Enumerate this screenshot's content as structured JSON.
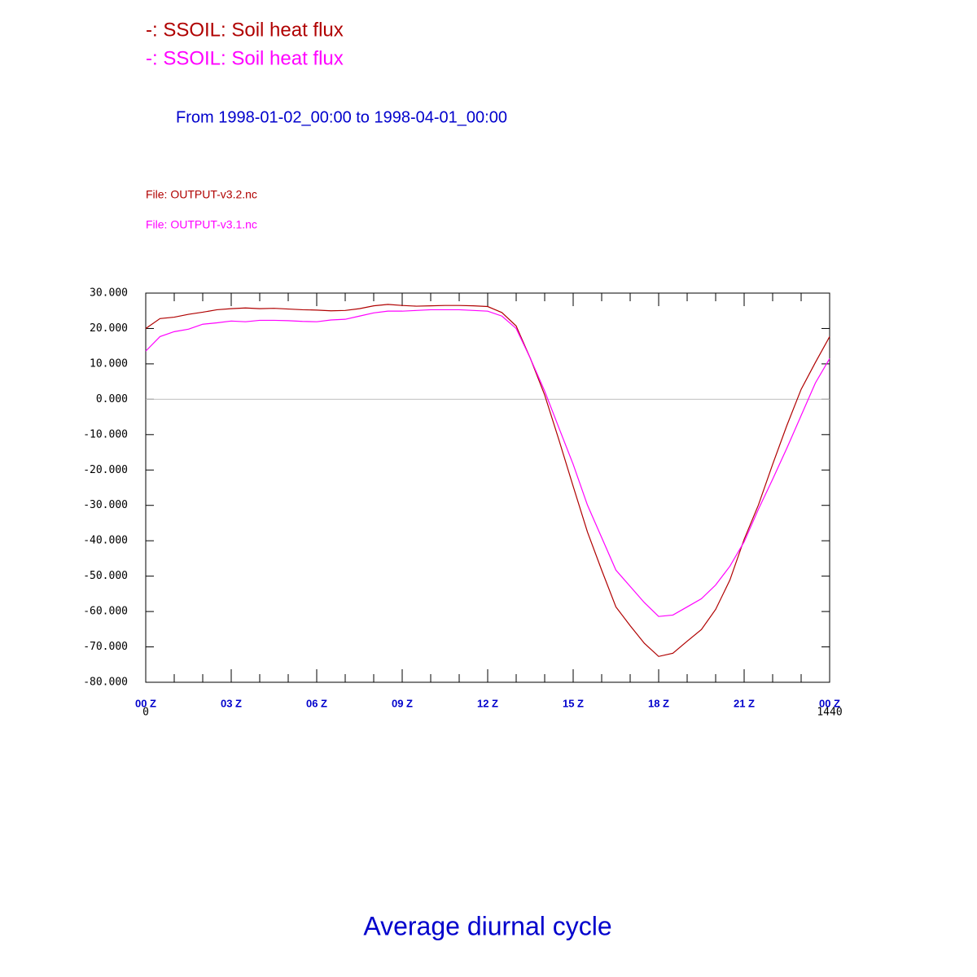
{
  "chart_data": {
    "type": "line",
    "legend": [
      "-: SSOIL: Soil heat flux",
      "-: SSOIL: Soil heat flux"
    ],
    "subtitle": "From 1998-01-02_00:00 to 1998-04-01_00:00",
    "files": [
      "File: OUTPUT-v3.2.nc",
      "File: OUTPUT-v3.1.nc"
    ],
    "title": "Average diurnal cycle",
    "x": [
      0,
      30,
      60,
      90,
      120,
      150,
      180,
      210,
      240,
      270,
      300,
      330,
      360,
      390,
      420,
      450,
      480,
      510,
      540,
      570,
      600,
      630,
      660,
      690,
      720,
      750,
      780,
      810,
      840,
      870,
      900,
      930,
      960,
      990,
      1020,
      1050,
      1080,
      1110,
      1140,
      1170,
      1200,
      1230,
      1260,
      1290,
      1320,
      1350,
      1380,
      1410,
      1440
    ],
    "series": [
      {
        "name": "SSOIL",
        "color": "#b00000",
        "values": [
          20.0,
          22.8,
          23.2,
          24.0,
          24.6,
          25.3,
          25.6,
          25.8,
          25.6,
          25.7,
          25.5,
          25.3,
          25.2,
          25.0,
          25.1,
          25.6,
          26.4,
          26.8,
          26.5,
          26.3,
          26.4,
          26.5,
          26.5,
          26.4,
          26.2,
          24.5,
          20.7,
          11.5,
          1.2,
          -11.5,
          -24.6,
          -37.5,
          -48.3,
          -58.7,
          -64,
          -69,
          -72.7,
          -71.8,
          -68.4,
          -65.1,
          -59.4,
          -51.1,
          -39.6,
          -29.9,
          -18.4,
          -7.4,
          2.8,
          10.4,
          17.7
        ]
      },
      {
        "name": "SSOIL",
        "color": "#ff00ff",
        "values": [
          13.6,
          17.7,
          19.1,
          19.8,
          21.2,
          21.6,
          22.1,
          21.9,
          22.3,
          22.3,
          22.2,
          22.0,
          21.9,
          22.4,
          22.6,
          23.5,
          24.4,
          24.9,
          24.9,
          25.1,
          25.3,
          25.3,
          25.3,
          25.1,
          24.9,
          23.5,
          20.0,
          11.5,
          2.3,
          -8.1,
          -18.4,
          -29.9,
          -39.1,
          -48.3,
          -52.9,
          -57.5,
          -61.4,
          -61.0,
          -58.7,
          -56.4,
          -52.5,
          -47.2,
          -40.3,
          -31.1,
          -22.6,
          -13.8,
          -4.6,
          4.6,
          11.5
        ]
      }
    ],
    "xlim": [
      0,
      1440
    ],
    "xticks": [
      {
        "value": 0,
        "label": "00 Z"
      },
      {
        "value": 180,
        "label": "03 Z"
      },
      {
        "value": 360,
        "label": "06 Z"
      },
      {
        "value": 540,
        "label": "09 Z"
      },
      {
        "value": 720,
        "label": "12 Z"
      },
      {
        "value": 900,
        "label": "15 Z"
      },
      {
        "value": 1080,
        "label": "18 Z"
      },
      {
        "value": 1260,
        "label": "21 Z"
      },
      {
        "value": 1440,
        "label": "00 Z"
      }
    ],
    "xminor_ticks": [
      60,
      120,
      240,
      300,
      420,
      480,
      600,
      660,
      780,
      840,
      960,
      1020,
      1140,
      1200,
      1320,
      1380
    ],
    "ylim": [
      -80,
      30
    ],
    "yticks": [
      {
        "value": 30,
        "label": "30.000"
      },
      {
        "value": 20,
        "label": "20.000"
      },
      {
        "value": 10,
        "label": "10.000"
      },
      {
        "value": 0,
        "label": "0.000"
      },
      {
        "value": -10,
        "label": "-10.000"
      },
      {
        "value": -20,
        "label": "-20.000"
      },
      {
        "value": -30,
        "label": "-30.000"
      },
      {
        "value": -40,
        "label": "-40.000"
      },
      {
        "value": -50,
        "label": "-50.000"
      },
      {
        "value": -60,
        "label": "-60.000"
      },
      {
        "value": -70,
        "label": "-70.000"
      },
      {
        "value": -80,
        "label": "-80.000"
      }
    ],
    "zero_line": true
  }
}
